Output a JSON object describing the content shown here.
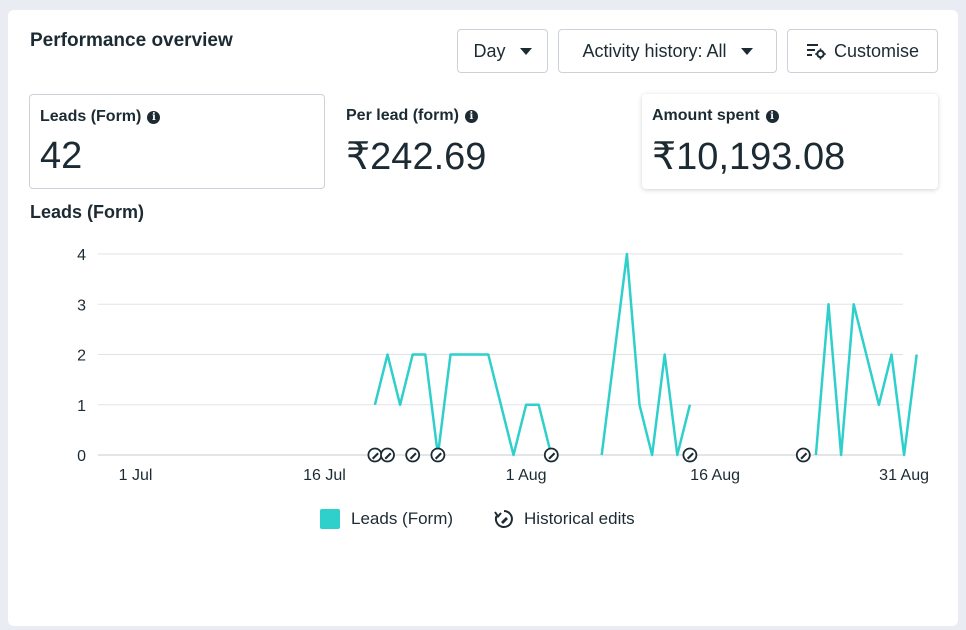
{
  "header": {
    "title": "Performance overview",
    "day_label": "Day",
    "activity_label": "Activity history: All",
    "customise_label": "Customise"
  },
  "metrics": [
    {
      "label": "Leads (Form)",
      "value": "42"
    },
    {
      "label": "Per lead (form)",
      "value": "₹242.69"
    },
    {
      "label": "Amount spent",
      "value": "₹10,193.08"
    }
  ],
  "chart_title": "Leads (Form)",
  "legend": {
    "series_label": "Leads (Form)",
    "edits_label": "Historical edits"
  },
  "colors": {
    "series": "#2fcfcb",
    "text": "#1c2b33",
    "grid": "#dfe3e8"
  },
  "chart_data": {
    "type": "line",
    "title": "Leads (Form)",
    "xlabel": "",
    "ylabel": "",
    "ylim": [
      0,
      4
    ],
    "yticks": [
      "0",
      "1",
      "2",
      "3",
      "4"
    ],
    "xticks": [
      {
        "day": 1,
        "label": "1 Jul"
      },
      {
        "day": 16,
        "label": "16 Jul"
      },
      {
        "day": 32,
        "label": "1 Aug"
      },
      {
        "day": 47,
        "label": "16 Aug"
      },
      {
        "day": 62,
        "label": "31 Aug"
      }
    ],
    "grid": true,
    "legend_position": "bottom",
    "series": [
      {
        "name": "Leads (Form)",
        "segments": [
          [
            [
              20,
              1
            ],
            [
              21,
              2
            ],
            [
              22,
              1
            ],
            [
              23,
              2
            ],
            [
              24,
              2
            ],
            [
              25,
              0
            ],
            [
              26,
              2
            ],
            [
              27,
              2
            ],
            [
              28,
              2
            ],
            [
              29,
              2
            ],
            [
              30,
              1
            ],
            [
              31,
              0
            ],
            [
              32,
              1
            ],
            [
              33,
              1
            ],
            [
              34,
              0
            ]
          ],
          [
            [
              38,
              0
            ],
            [
              39,
              2
            ],
            [
              40,
              4
            ],
            [
              41,
              1
            ],
            [
              42,
              0
            ],
            [
              43,
              2
            ],
            [
              44,
              0
            ],
            [
              45,
              1
            ]
          ],
          [
            [
              55,
              0
            ],
            [
              56,
              3
            ],
            [
              57,
              0
            ],
            [
              58,
              3
            ],
            [
              59,
              2
            ],
            [
              60,
              1
            ],
            [
              61,
              2
            ],
            [
              62,
              0
            ],
            [
              63,
              2
            ]
          ]
        ]
      }
    ],
    "historical_edit_days": [
      20,
      21,
      23,
      25,
      34,
      45,
      54
    ]
  }
}
